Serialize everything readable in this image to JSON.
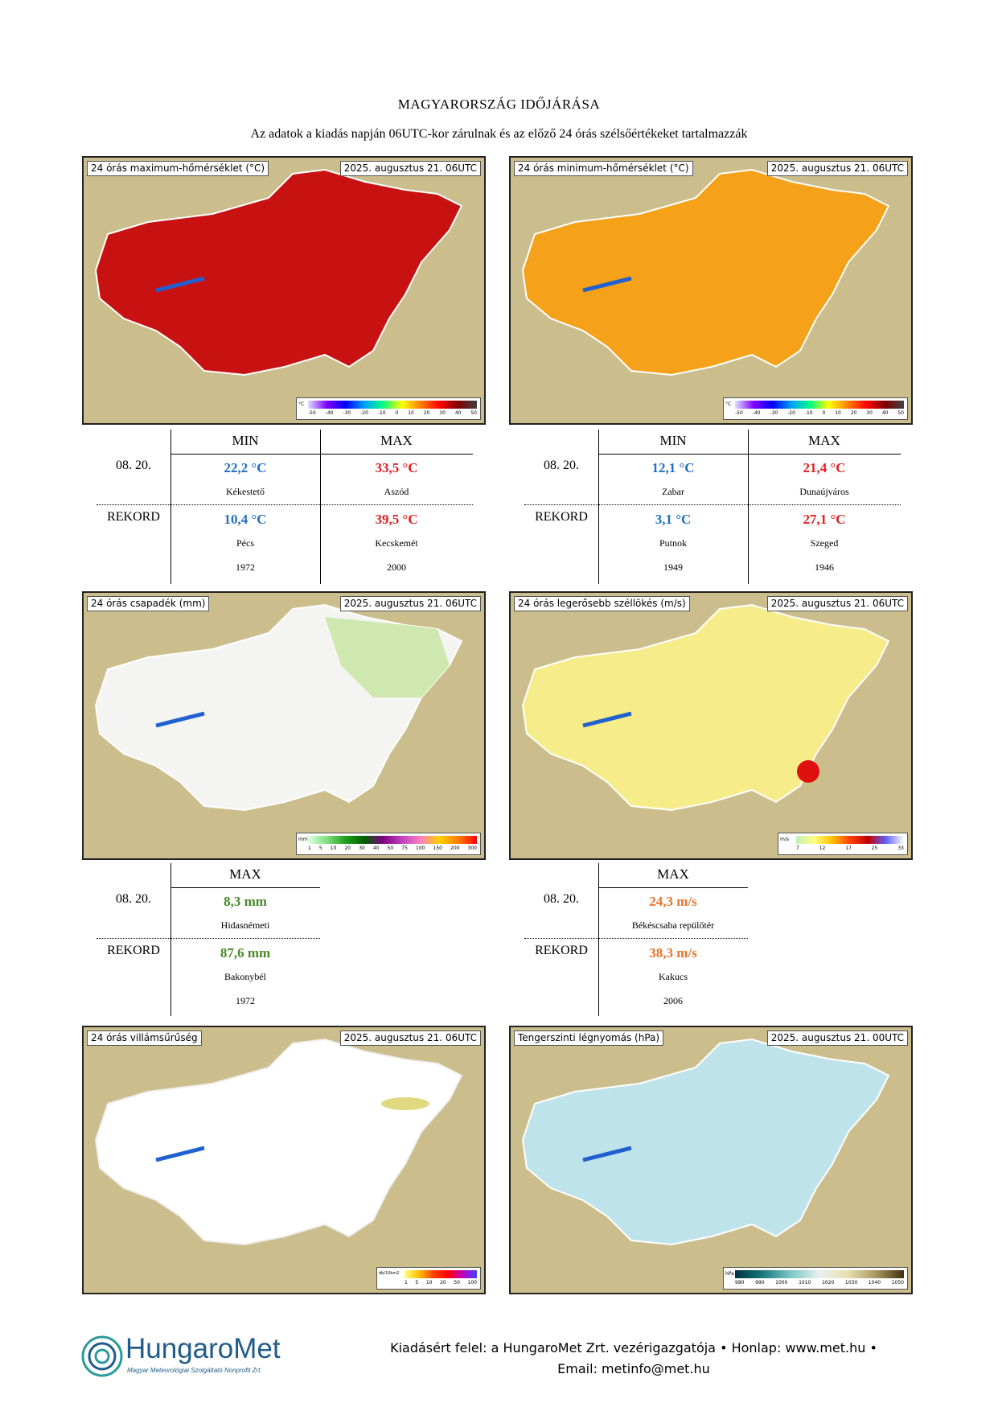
{
  "title": "MAGYARORSZÁG IDŐJÁRÁSA",
  "subtitle": "Az adatok a kiadás napján 06UTC-kor zárulnak és az előző 24 órás szélsőértékeket tartalmazzák",
  "maps": {
    "tmax": {
      "label": "24 órás maximum-hőmérséklet (°C)",
      "date": "2025. augusztus 21. 06UTC",
      "legend_unit": "°C",
      "legend_ticks": [
        "-50",
        "-40",
        "-30",
        "-20",
        "-10",
        "0",
        "10",
        "20",
        "30",
        "40",
        "50"
      ]
    },
    "tmin": {
      "label": "24 órás minimum-hőmérséklet (°C)",
      "date": "2025. augusztus 21. 06UTC",
      "legend_unit": "°C",
      "legend_ticks": [
        "-50",
        "-40",
        "-30",
        "-20",
        "-10",
        "0",
        "10",
        "20",
        "30",
        "40",
        "50"
      ]
    },
    "precip": {
      "label": "24 órás csapadék (mm)",
      "date": "2025. augusztus 21. 06UTC",
      "legend_unit": "mm",
      "legend_ticks": [
        "1",
        "5",
        "10",
        "20",
        "30",
        "40",
        "50",
        "75",
        "100",
        "150",
        "200",
        "300"
      ]
    },
    "wind": {
      "label": "24 órás legerősebb széllökés (m/s)",
      "date": "2025. augusztus 21. 06UTC",
      "legend_unit": "m/s",
      "legend_ticks": [
        "7",
        "12",
        "17",
        "25",
        "33"
      ]
    },
    "lightning": {
      "label": "24 órás villámsűrűség",
      "date": "2025. augusztus 21. 06UTC",
      "legend_unit": "db/10km2",
      "legend_ticks": [
        "1",
        "5",
        "10",
        "20",
        "50",
        "100"
      ]
    },
    "pressure": {
      "label": "Tengerszinti légnyomás (hPa)",
      "date": "2025. augusztus 21. 00UTC",
      "legend_unit": "hPa",
      "legend_ticks": [
        "980",
        "990",
        "1000",
        "1010",
        "1020",
        "1030",
        "1040",
        "1050"
      ]
    }
  },
  "tables": {
    "tmax": {
      "col_min": "MIN",
      "col_max": "MAX",
      "row1_label": "08. 20.",
      "row1_min": "22,2 °C",
      "row1_min_place": "Kékestető",
      "row1_max": "33,5 °C",
      "row1_max_place": "Aszód",
      "row2_label": "REKORD",
      "row2_min": "10,4 °C",
      "row2_min_place": "Pécs",
      "row2_min_year": "1972",
      "row2_max": "39,5 °C",
      "row2_max_place": "Kecskemét",
      "row2_max_year": "2000"
    },
    "tmin": {
      "col_min": "MIN",
      "col_max": "MAX",
      "row1_label": "08. 20.",
      "row1_min": "12,1 °C",
      "row1_min_place": "Zabar",
      "row1_max": "21,4 °C",
      "row1_max_place": "Dunaújváros",
      "row2_label": "REKORD",
      "row2_min": "3,1 °C",
      "row2_min_place": "Putnok",
      "row2_min_year": "1949",
      "row2_max": "27,1 °C",
      "row2_max_place": "Szeged",
      "row2_max_year": "1946"
    },
    "precip": {
      "col_max": "MAX",
      "row1_label": "08. 20.",
      "row1_max": "8,3 mm",
      "row1_max_place": "Hidasnémeti",
      "row2_label": "REKORD",
      "row2_max": "87,6 mm",
      "row2_max_place": "Bakonybél",
      "row2_max_year": "1972"
    },
    "wind": {
      "col_max": "MAX",
      "row1_label": "08. 20.",
      "row1_max": "24,3 m/s",
      "row1_max_place": "Békéscsaba repülőtér",
      "row2_label": "REKORD",
      "row2_max": "38,3 m/s",
      "row2_max_place": "Kakucs",
      "row2_max_year": "2006"
    }
  },
  "footer": {
    "line1": "Kiadásért felel: a HungaroMet Zrt. vezérigazgatója • Honlap: www.met.hu •",
    "line2": "Email: metinfo@met.hu",
    "logo_name": "HungaroMet",
    "logo_sub": "Magyar Meteorológiai Szolgáltató Nonprofit Zrt."
  }
}
